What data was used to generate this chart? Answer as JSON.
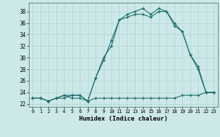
{
  "xlabel": "Humidex (Indice chaleur)",
  "background_color": "#cce8e8",
  "grid_color": "#b8d8d8",
  "line_color": "#1a6b6b",
  "xlim": [
    -0.5,
    23.5
  ],
  "ylim": [
    21.5,
    39.5
  ],
  "yticks": [
    22,
    24,
    26,
    28,
    30,
    32,
    34,
    36,
    38
  ],
  "xticks": [
    0,
    1,
    2,
    3,
    4,
    5,
    6,
    7,
    8,
    9,
    10,
    11,
    12,
    13,
    14,
    15,
    16,
    17,
    18,
    19,
    20,
    21,
    22,
    23
  ],
  "line1_x": [
    0,
    1,
    2,
    3,
    4,
    5,
    6,
    7,
    8,
    9,
    10,
    11,
    12,
    13,
    14,
    15,
    16,
    17,
    18,
    19,
    20,
    21,
    22,
    23
  ],
  "line1_y": [
    23,
    23,
    22.5,
    23,
    23.5,
    23,
    23,
    22.5,
    23,
    23,
    23,
    23,
    23,
    23,
    23,
    23,
    23,
    23,
    23,
    23.5,
    23.5,
    23.5,
    24,
    24
  ],
  "line2_x": [
    0,
    1,
    2,
    3,
    4,
    5,
    6,
    7,
    8,
    9,
    10,
    11,
    12,
    13,
    14,
    15,
    16,
    17,
    18,
    19,
    20,
    21,
    22,
    23
  ],
  "line2_y": [
    23,
    23,
    22.5,
    23,
    23.5,
    23.5,
    23.5,
    22.5,
    26.5,
    29.5,
    33,
    36.5,
    37,
    37.5,
    37.5,
    37,
    38,
    38,
    35.5,
    34.5,
    30.5,
    28,
    24,
    24
  ],
  "line3_x": [
    0,
    1,
    2,
    3,
    4,
    5,
    6,
    7,
    8,
    9,
    10,
    11,
    12,
    13,
    14,
    15,
    16,
    17,
    18,
    19,
    20,
    21,
    22,
    23
  ],
  "line3_y": [
    23,
    23,
    22.5,
    23,
    23,
    23.5,
    23.5,
    22.5,
    26.5,
    30,
    32,
    36.5,
    37.5,
    38,
    38.5,
    37.5,
    38.5,
    38,
    36,
    34.5,
    30.5,
    28.5,
    24,
    24
  ]
}
